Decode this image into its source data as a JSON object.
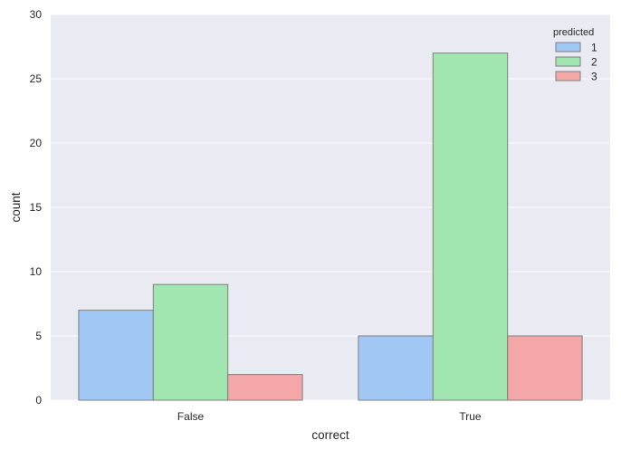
{
  "chart_data": {
    "type": "bar",
    "categories": [
      "False",
      "True"
    ],
    "series": [
      {
        "name": "1",
        "values": [
          7,
          5
        ],
        "color": "#a1c8f4"
      },
      {
        "name": "2",
        "values": [
          9,
          27
        ],
        "color": "#a1e6b0"
      },
      {
        "name": "3",
        "values": [
          2,
          5
        ],
        "color": "#f3a8a7"
      }
    ],
    "xlabel": "correct",
    "ylabel": "count",
    "ylim": [
      0,
      30
    ],
    "yticks": [
      0,
      5,
      10,
      15,
      20,
      25,
      30
    ],
    "legend_title": "predicted",
    "legend_position": "top-right",
    "grid": true,
    "background_color": "#eaeaf2",
    "grid_color": "#ffffff",
    "edge_color": "#7f7f7f"
  }
}
